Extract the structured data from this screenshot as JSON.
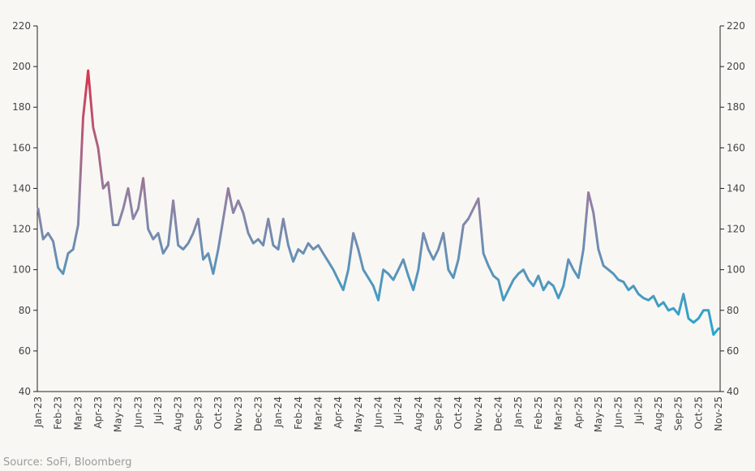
{
  "chart_data": {
    "type": "line",
    "source": "Source: SoFi, Bloomberg",
    "categories": [
      "Jan-23",
      null,
      null,
      null,
      "Feb-23",
      null,
      null,
      null,
      "Mar-23",
      null,
      null,
      null,
      "Apr-23",
      null,
      null,
      null,
      "May-23",
      null,
      null,
      null,
      "Jun-23",
      null,
      null,
      null,
      "Jul-23",
      null,
      null,
      null,
      "Aug-23",
      null,
      null,
      null,
      "Sep-23",
      null,
      null,
      null,
      "Oct-23",
      null,
      null,
      null,
      "Nov-23",
      null,
      null,
      null,
      "Dec-23",
      null,
      null,
      null,
      "Jan-24",
      null,
      null,
      null,
      "Feb-24",
      null,
      null,
      null,
      "Mar-24",
      null,
      null,
      null,
      "Apr-24",
      null,
      null,
      null,
      "May-24",
      null,
      null,
      null,
      "Jun-24",
      null,
      null,
      null,
      "Jul-24",
      null,
      null,
      null,
      "Aug-24",
      null,
      null,
      null,
      "Sep-24",
      null,
      null,
      null,
      "Oct-24",
      null,
      null,
      null,
      "Nov-24",
      null,
      null,
      null,
      "Dec-24",
      null,
      null,
      null,
      "Jan-25",
      null,
      null,
      null,
      "Feb-25",
      null,
      null,
      null,
      "Mar-25",
      null,
      null,
      null,
      "Apr-25",
      null,
      null,
      null,
      "May-25",
      null,
      null,
      null,
      "Jun-25",
      null,
      null,
      null,
      "Jul-25",
      null,
      null,
      null,
      "Aug-25",
      null,
      null,
      null,
      "Sep-25",
      null,
      null,
      null,
      "Oct-25",
      null,
      null,
      null,
      "Nov-25"
    ],
    "values": [
      130,
      115,
      118,
      114,
      101,
      98,
      108,
      110,
      122,
      175,
      198,
      170,
      160,
      140,
      143,
      122,
      122,
      130,
      140,
      125,
      130,
      145,
      120,
      115,
      118,
      108,
      112,
      134,
      112,
      110,
      113,
      118,
      125,
      105,
      108,
      98,
      110,
      125,
      140,
      128,
      134,
      128,
      118,
      113,
      115,
      112,
      125,
      112,
      110,
      125,
      112,
      104,
      110,
      108,
      113,
      110,
      112,
      108,
      104,
      100,
      95,
      90,
      100,
      118,
      110,
      100,
      96,
      92,
      85,
      100,
      98,
      95,
      100,
      105,
      97,
      90,
      100,
      118,
      110,
      105,
      110,
      118,
      100,
      96,
      105,
      122,
      125,
      130,
      135,
      108,
      102,
      97,
      95,
      85,
      90,
      95,
      98,
      100,
      95,
      92,
      97,
      90,
      94,
      92,
      86,
      92,
      105,
      100,
      96,
      110,
      138,
      128,
      110,
      102,
      100,
      98,
      95,
      94,
      90,
      92,
      88,
      86,
      85,
      87,
      82,
      84,
      80,
      81,
      78,
      88,
      76,
      74,
      76,
      80,
      80,
      68,
      71
    ],
    "gradient": [
      "#d6364f",
      "#8f82a4",
      "#27a6cf"
    ],
    "ylim": [
      40,
      220
    ],
    "yticks": [
      40,
      60,
      80,
      100,
      120,
      140,
      160,
      180,
      200,
      220
    ],
    "y2lim": [
      40,
      220
    ],
    "y2ticks": [
      40,
      60,
      80,
      100,
      120,
      140,
      160,
      180,
      200,
      220
    ],
    "grid": false
  }
}
